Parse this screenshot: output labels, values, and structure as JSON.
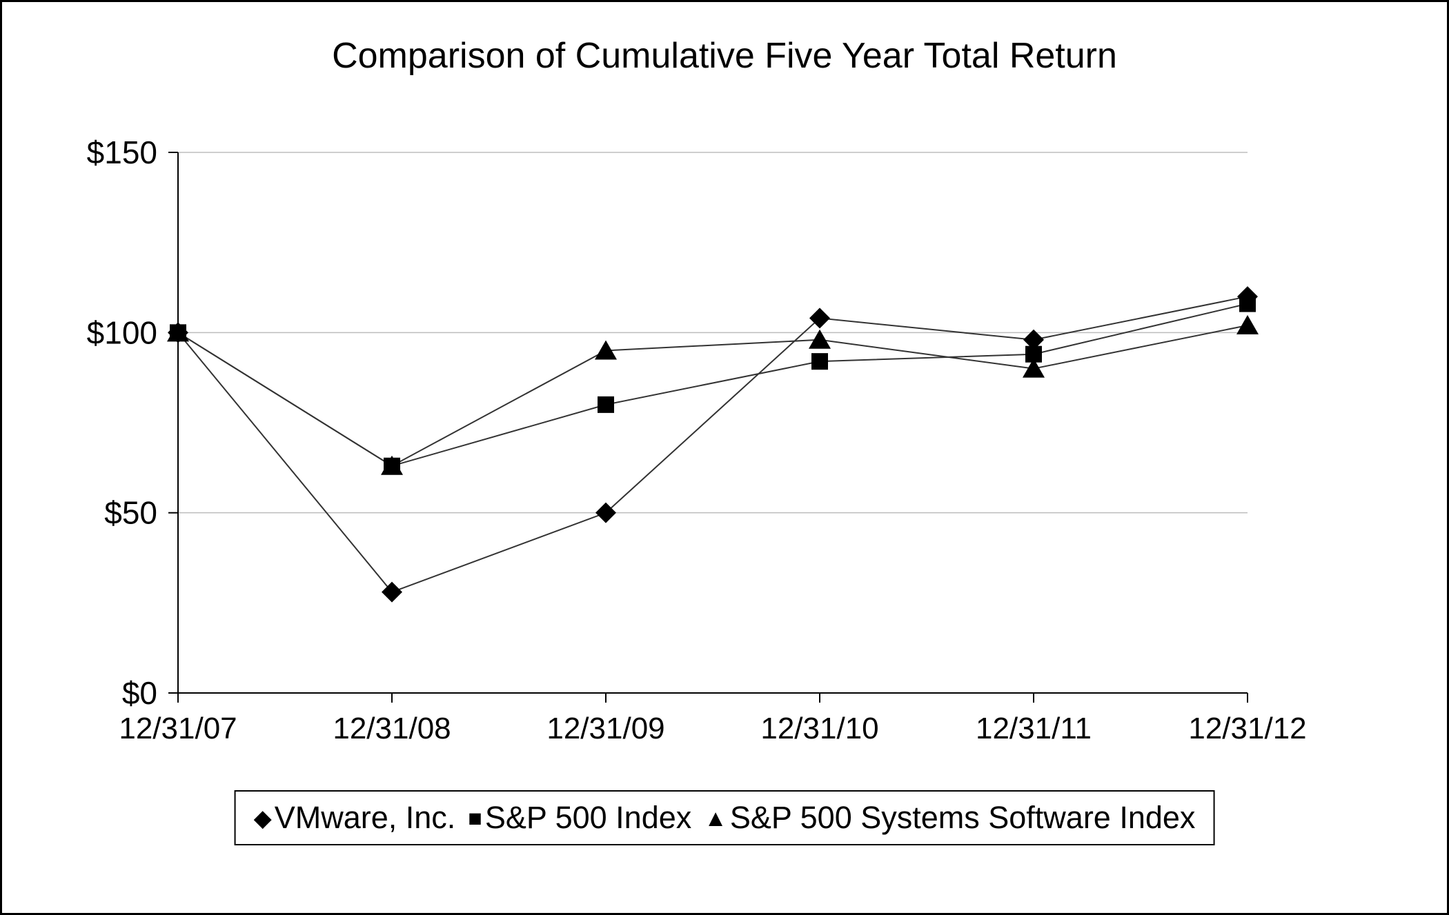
{
  "chart_data": {
    "type": "line",
    "title": "Comparison of Cumulative Five Year Total Return",
    "categories": [
      "12/31/07",
      "12/31/08",
      "12/31/09",
      "12/31/10",
      "12/31/11",
      "12/31/12"
    ],
    "series": [
      {
        "name": "VMware, Inc.",
        "marker": "diamond",
        "values": [
          100,
          28,
          50,
          104,
          98,
          110
        ]
      },
      {
        "name": "S&P 500 Index",
        "marker": "square",
        "values": [
          100,
          63,
          80,
          92,
          94,
          108
        ]
      },
      {
        "name": "S&P 500 Systems Software Index",
        "marker": "triangle",
        "values": [
          100,
          63,
          95,
          98,
          90,
          102
        ]
      }
    ],
    "ylim": [
      0,
      150
    ],
    "yticks": [
      0,
      50,
      100,
      150
    ],
    "ytick_labels": [
      "$0",
      "$50",
      "$100",
      "$150"
    ],
    "xlabel": "",
    "ylabel": "",
    "grid": "horizontal",
    "legend_position": "bottom",
    "colors": {
      "line": "#333333",
      "marker": "#000000",
      "axis": "#000000",
      "gridline": "#bdbdbd",
      "text": "#000000"
    }
  }
}
